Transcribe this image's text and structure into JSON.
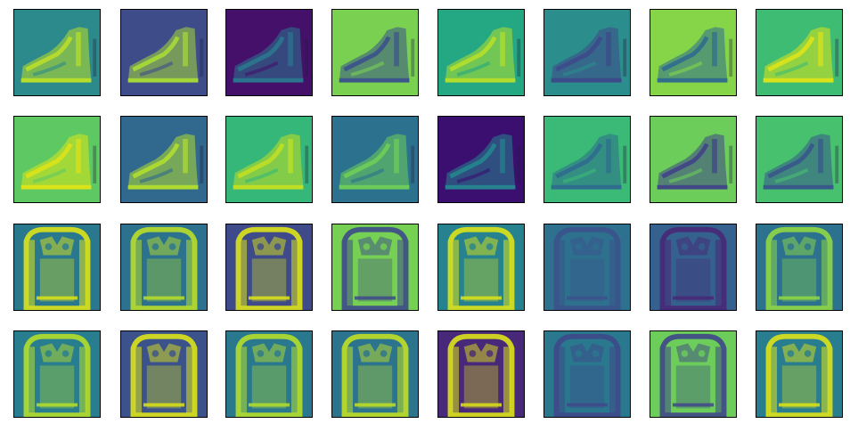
{
  "figure": {
    "rows": 4,
    "cols": 8,
    "colormap": "viridis",
    "rows_content": [
      {
        "object": "boot",
        "panels": [
          {
            "bg": "#2d8a8c",
            "fg": "#b9de28"
          },
          {
            "bg": "#3e4c8a",
            "fg": "#a5db36"
          },
          {
            "bg": "#44106a",
            "fg": "#2a788e"
          },
          {
            "bg": "#7ad151",
            "fg": "#3b528b"
          },
          {
            "bg": "#23a883",
            "fg": "#b5de2b"
          },
          {
            "bg": "#2b8e8c",
            "fg": "#3e4989"
          },
          {
            "bg": "#86d549",
            "fg": "#2f6c8e"
          },
          {
            "bg": "#3fbc73",
            "fg": "#dde318"
          }
        ]
      },
      {
        "object": "boot",
        "panels": [
          {
            "bg": "#5ec962",
            "fg": "#dde318"
          },
          {
            "bg": "#31688e",
            "fg": "#b0dd2f"
          },
          {
            "bg": "#35b779",
            "fg": "#c2df23"
          },
          {
            "bg": "#2c728e",
            "fg": "#6ece58"
          },
          {
            "bg": "#3b0f70",
            "fg": "#25858e"
          },
          {
            "bg": "#3aba76",
            "fg": "#2f6b8e"
          },
          {
            "bg": "#6ccd5a",
            "fg": "#404388"
          },
          {
            "bg": "#48c16e",
            "fg": "#39568c"
          }
        ]
      },
      {
        "object": "coat",
        "panels": [
          {
            "bg": "#2a788e",
            "fg": "#dde318"
          },
          {
            "bg": "#2c728e",
            "fg": "#b8de29"
          },
          {
            "bg": "#3e4a89",
            "fg": "#dde318"
          },
          {
            "bg": "#75d054",
            "fg": "#3e4989"
          },
          {
            "bg": "#26828e",
            "fg": "#dde318"
          },
          {
            "bg": "#2d718e",
            "fg": "#3b528b"
          },
          {
            "bg": "#34618d",
            "fg": "#482878"
          },
          {
            "bg": "#2c728e",
            "fg": "#8fd744"
          }
        ]
      },
      {
        "object": "coat",
        "panels": [
          {
            "bg": "#287d8e",
            "fg": "#b5de2b"
          },
          {
            "bg": "#3b528b",
            "fg": "#dde318"
          },
          {
            "bg": "#2a788e",
            "fg": "#b5de2b"
          },
          {
            "bg": "#2c738e",
            "fg": "#c0df25"
          },
          {
            "bg": "#482878",
            "fg": "#dde318"
          },
          {
            "bg": "#2a788e",
            "fg": "#3e4989"
          },
          {
            "bg": "#6ccd5a",
            "fg": "#3f4788"
          },
          {
            "bg": "#287d8e",
            "fg": "#dde318"
          }
        ]
      }
    ]
  }
}
